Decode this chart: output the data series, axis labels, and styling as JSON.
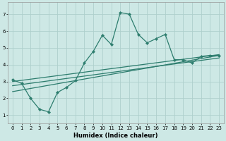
{
  "xlabel": "Humidex (Indice chaleur)",
  "xlim": [
    -0.5,
    23.5
  ],
  "ylim": [
    0.5,
    7.7
  ],
  "yticks": [
    1,
    2,
    3,
    4,
    5,
    6,
    7
  ],
  "xticks": [
    0,
    1,
    2,
    3,
    4,
    5,
    6,
    7,
    8,
    9,
    10,
    11,
    12,
    13,
    14,
    15,
    16,
    17,
    18,
    19,
    20,
    21,
    22,
    23
  ],
  "bg_color": "#cde8e5",
  "grid_color": "#aed0cc",
  "line_color": "#2d7d6e",
  "line1_x": [
    0,
    1,
    2,
    3,
    4,
    5,
    6,
    7,
    8,
    9,
    10,
    11,
    12,
    13,
    14,
    15,
    16,
    17,
    18,
    19,
    20,
    21,
    22,
    23
  ],
  "line1_y": [
    3.1,
    2.9,
    2.0,
    1.35,
    1.2,
    2.35,
    2.65,
    3.05,
    4.1,
    4.8,
    5.75,
    5.2,
    7.1,
    7.0,
    5.8,
    5.3,
    5.55,
    5.8,
    4.3,
    4.3,
    4.1,
    4.5,
    4.55,
    4.55
  ],
  "line2_x": [
    0,
    23
  ],
  "line2_y": [
    3.0,
    4.6
  ],
  "line3_x": [
    0,
    23
  ],
  "line3_y": [
    2.75,
    4.4
  ],
  "line4_x": [
    0,
    23
  ],
  "line4_y": [
    2.4,
    4.55
  ],
  "lw_main": 0.9,
  "lw_straight": 0.9,
  "marker_size": 2.2,
  "tick_fontsize": 5.0,
  "xlabel_fontsize": 6.0
}
